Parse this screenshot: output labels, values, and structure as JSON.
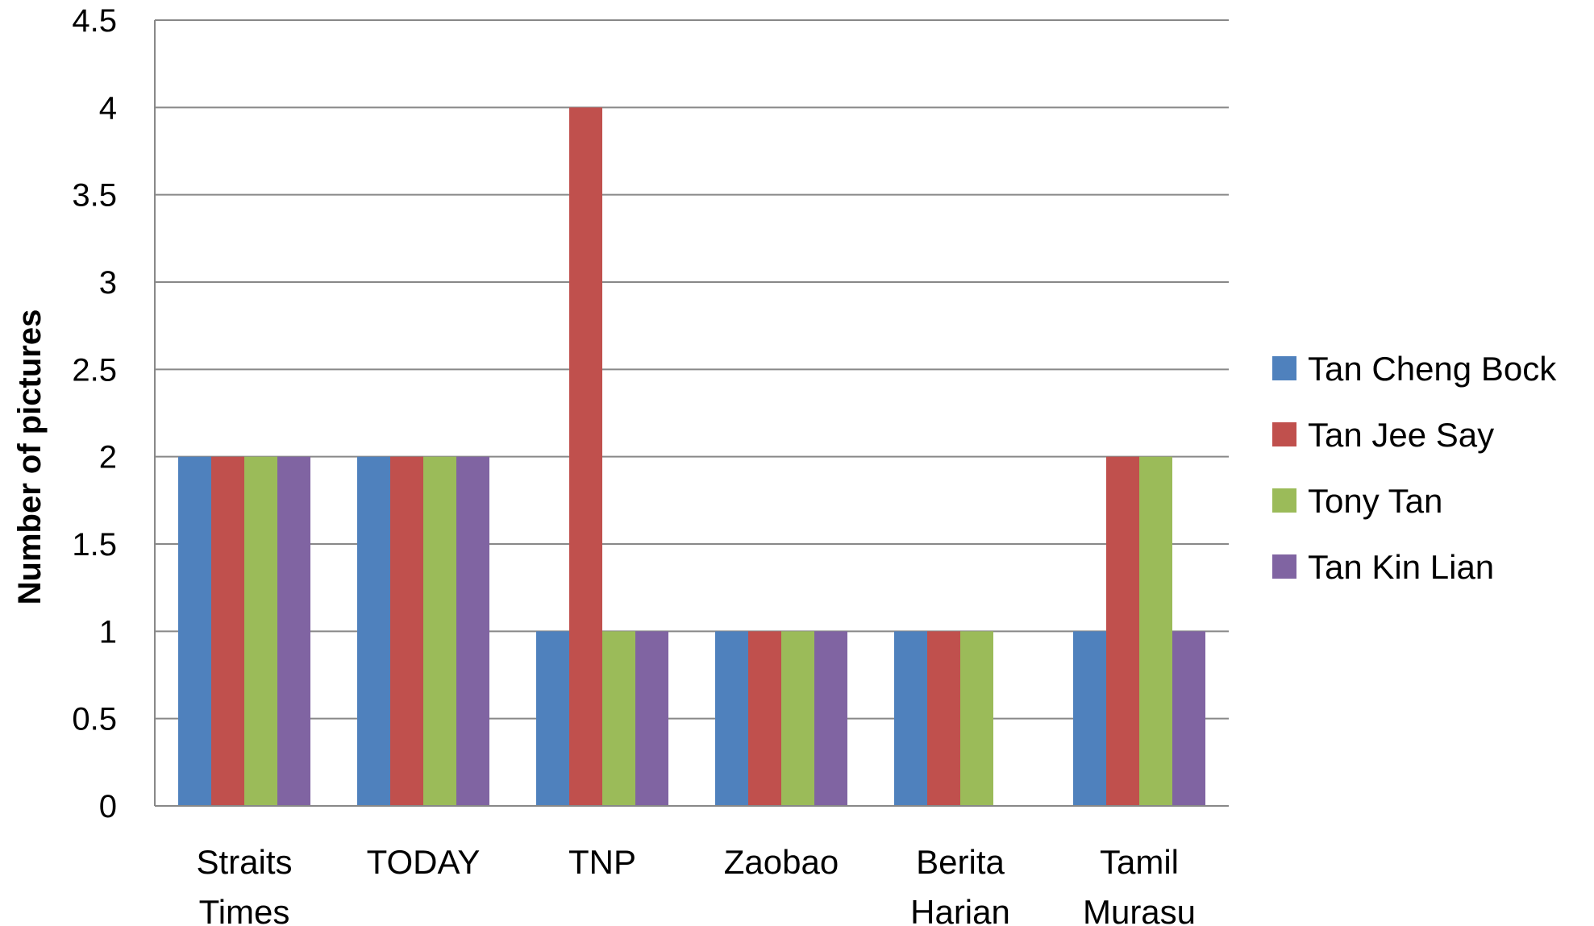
{
  "chart_data": {
    "type": "bar",
    "title": "",
    "xlabel": "",
    "ylabel": "Number of pictures",
    "ylim": [
      0,
      4.5
    ],
    "ytick_step": 0.5,
    "yticks": [
      "0",
      "0.5",
      "1",
      "1.5",
      "2",
      "2.5",
      "3",
      "3.5",
      "4",
      "4.5"
    ],
    "grid": "horizontal",
    "legend_position": "right",
    "categories": [
      [
        "Straits",
        "Times"
      ],
      [
        "TODAY"
      ],
      [
        "TNP"
      ],
      [
        "Zaobao"
      ],
      [
        "Berita",
        "Harian"
      ],
      [
        "Tamil",
        "Murasu"
      ]
    ],
    "series": [
      {
        "name": "Tan Cheng Bock",
        "color": "#4F81BD",
        "values": [
          2,
          2,
          1,
          1,
          1,
          1
        ]
      },
      {
        "name": "Tan Jee Say",
        "color": "#C0504D",
        "values": [
          2,
          2,
          4,
          1,
          1,
          2
        ]
      },
      {
        "name": "Tony Tan",
        "color": "#9BBB59",
        "values": [
          2,
          2,
          1,
          1,
          1,
          2
        ]
      },
      {
        "name": "Tan Kin Lian",
        "color": "#8064A2",
        "values": [
          2,
          2,
          1,
          1,
          0,
          1
        ]
      }
    ]
  }
}
